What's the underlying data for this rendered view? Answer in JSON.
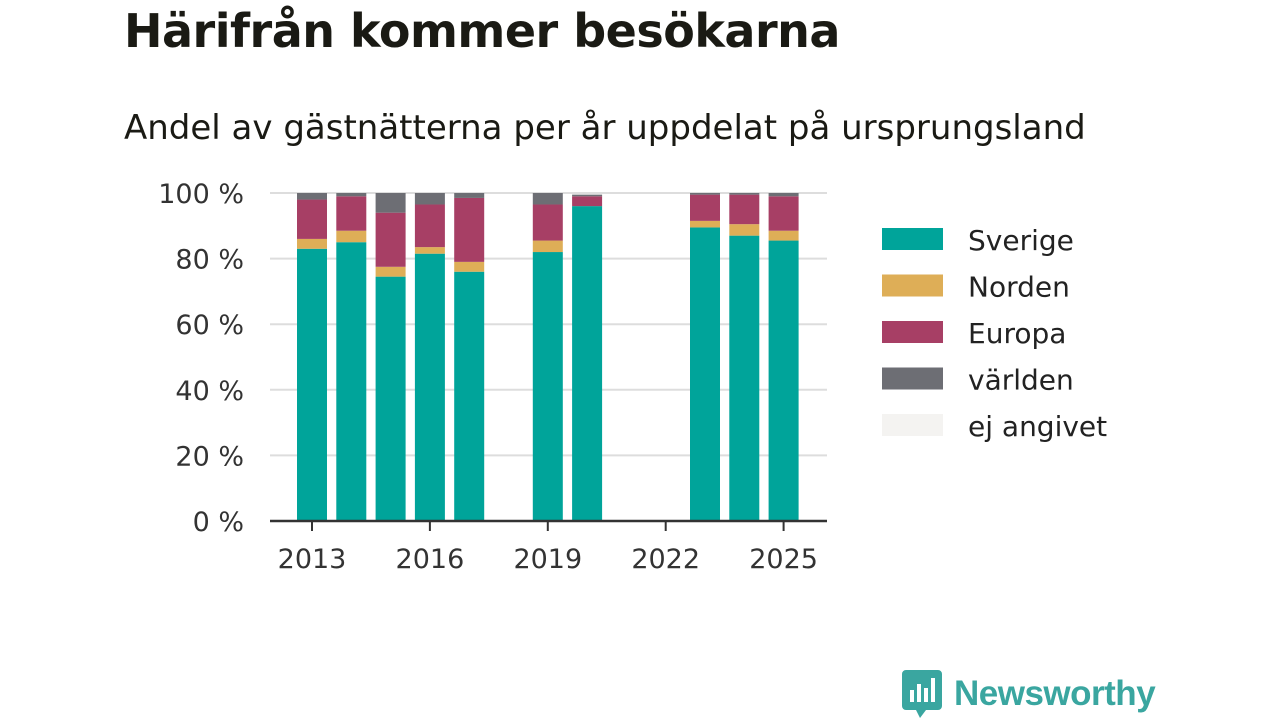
{
  "title": "Härifrån kommer besökarna",
  "subtitle": "Andel av gästnätterna per år uppdelat på ursprungsland",
  "brand": {
    "name": "Newsworthy",
    "icon": "newsworthy-logo-icon",
    "color": "#3aa6a0"
  },
  "chart_data": {
    "type": "bar",
    "stacked": true,
    "title": "Härifrån kommer besökarna",
    "subtitle": "Andel av gästnätterna per år uppdelat på ursprungsland",
    "xlabel": "",
    "ylabel": "",
    "ylim": [
      0,
      100
    ],
    "yticks": [
      0,
      20,
      40,
      60,
      80,
      100
    ],
    "ytick_labels": [
      "0 %",
      "20 %",
      "40 %",
      "60 %",
      "80 %",
      "100 %"
    ],
    "xtick_labels": [
      "2013",
      "2016",
      "2019",
      "2022",
      "2025"
    ],
    "xtick_values": [
      2013,
      2016,
      2019,
      2022,
      2025
    ],
    "grid": true,
    "legend_position": "right",
    "categories": [
      2013,
      2014,
      2015,
      2016,
      2017,
      2018,
      2019,
      2020,
      2021,
      2022,
      2023,
      2024,
      2025
    ],
    "series": [
      {
        "name": "Sverige",
        "color": "#00a49a",
        "values": [
          83,
          85,
          74.5,
          81.5,
          76,
          null,
          82,
          96,
          null,
          null,
          89.5,
          87,
          85.5
        ]
      },
      {
        "name": "Norden",
        "color": "#deae57",
        "values": [
          3,
          3.5,
          3,
          2,
          3,
          null,
          3.5,
          0,
          null,
          null,
          2,
          3.5,
          3
        ]
      },
      {
        "name": "Europa",
        "color": "#a73f65",
        "values": [
          12,
          10.5,
          16.5,
          13,
          19.5,
          null,
          11,
          3,
          null,
          null,
          8,
          9,
          10.5
        ]
      },
      {
        "name": "världen",
        "color": "#6d6e74",
        "values": [
          2,
          1,
          6,
          3.5,
          1.5,
          null,
          3.5,
          0.5,
          null,
          null,
          0.5,
          0.5,
          1
        ]
      },
      {
        "name": "ej angivet",
        "color": "#f4f3f1",
        "values": [
          0,
          0,
          0,
          0,
          0,
          null,
          0,
          0,
          null,
          null,
          0,
          0,
          0
        ]
      }
    ]
  }
}
